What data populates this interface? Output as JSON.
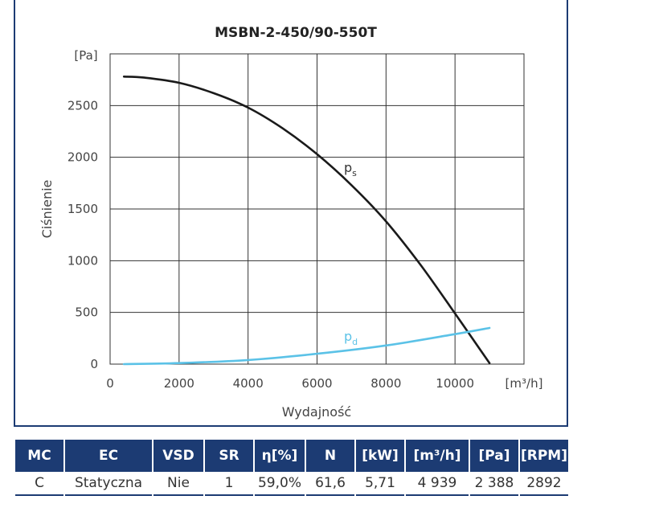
{
  "chart_data": {
    "type": "line",
    "title": "MSBN-2-450/90-550T",
    "xlabel": "Wydajność",
    "ylabel": "Ciśnienie",
    "x_unit": "[m³/h]",
    "y_unit": "[Pa]",
    "xlim": [
      0,
      12000
    ],
    "ylim": [
      0,
      3000
    ],
    "xticks": [
      "0",
      "2000",
      "4000",
      "6000",
      "8000",
      "10000"
    ],
    "yticks": [
      "0",
      "500",
      "1000",
      "1500",
      "2000",
      "2500"
    ],
    "grid": true,
    "series": [
      {
        "name": "ps",
        "color": "#1a1a1a",
        "x": [
          400,
          1000,
          2000,
          3000,
          4000,
          5000,
          6000,
          7000,
          8000,
          9000,
          10000,
          10500,
          11000
        ],
        "y": [
          2780,
          2770,
          2720,
          2620,
          2480,
          2280,
          2030,
          1730,
          1380,
          960,
          490,
          250,
          10
        ]
      },
      {
        "name": "pd",
        "color": "#5bc2e7",
        "x": [
          400,
          2000,
          4000,
          6000,
          8000,
          10000,
          11000
        ],
        "y": [
          0,
          10,
          40,
          100,
          180,
          290,
          350
        ]
      }
    ]
  },
  "series_labels": {
    "ps_main": "p",
    "ps_sub": "s",
    "pd_main": "p",
    "pd_sub": "d"
  },
  "table": {
    "headers": [
      "MC",
      "EC",
      "VSD",
      "SR",
      "η[%]",
      "N",
      "[kW]",
      "[m³/h]",
      "[Pa]",
      "[RPM]"
    ],
    "row": [
      "C",
      "Statyczna",
      "Nie",
      "1",
      "59,0%",
      "61,6",
      "5,71",
      "4 939",
      "2 388",
      "2892"
    ]
  },
  "colors": {
    "frame": "#1c3b73",
    "header_bg": "#1c3b73",
    "grid": "#333333"
  }
}
